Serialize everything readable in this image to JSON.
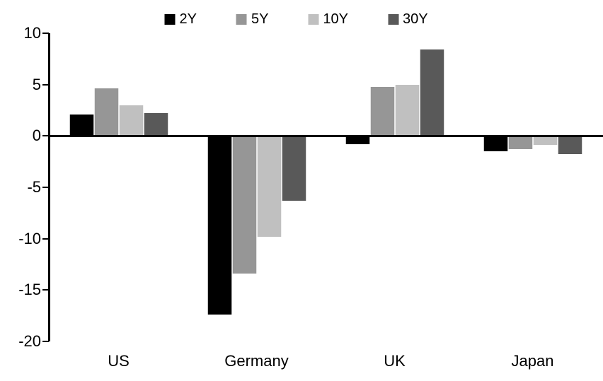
{
  "chart_data": {
    "type": "bar",
    "title": "",
    "categories": [
      "US",
      "Germany",
      "UK",
      "Japan"
    ],
    "series": [
      {
        "name": "2Y",
        "color": "#000000",
        "values": [
          2.1,
          -17.4,
          -0.8,
          -1.5
        ]
      },
      {
        "name": "5Y",
        "color": "#969696",
        "values": [
          4.6,
          -13.4,
          4.8,
          -1.3
        ]
      },
      {
        "name": "10Y",
        "color": "#c0c0c0",
        "values": [
          3.0,
          -9.8,
          5.0,
          -0.9
        ]
      },
      {
        "name": "30Y",
        "color": "#595959",
        "values": [
          2.2,
          -6.3,
          8.4,
          -1.8
        ]
      }
    ],
    "ylim": [
      -20,
      10
    ],
    "yticks": [
      10,
      5,
      0,
      -5,
      -10,
      -15,
      -20
    ],
    "xlabel": "",
    "ylabel": "",
    "grid": false,
    "legend_position": "top",
    "axis_color": "#000000",
    "background_color": "#ffffff"
  }
}
